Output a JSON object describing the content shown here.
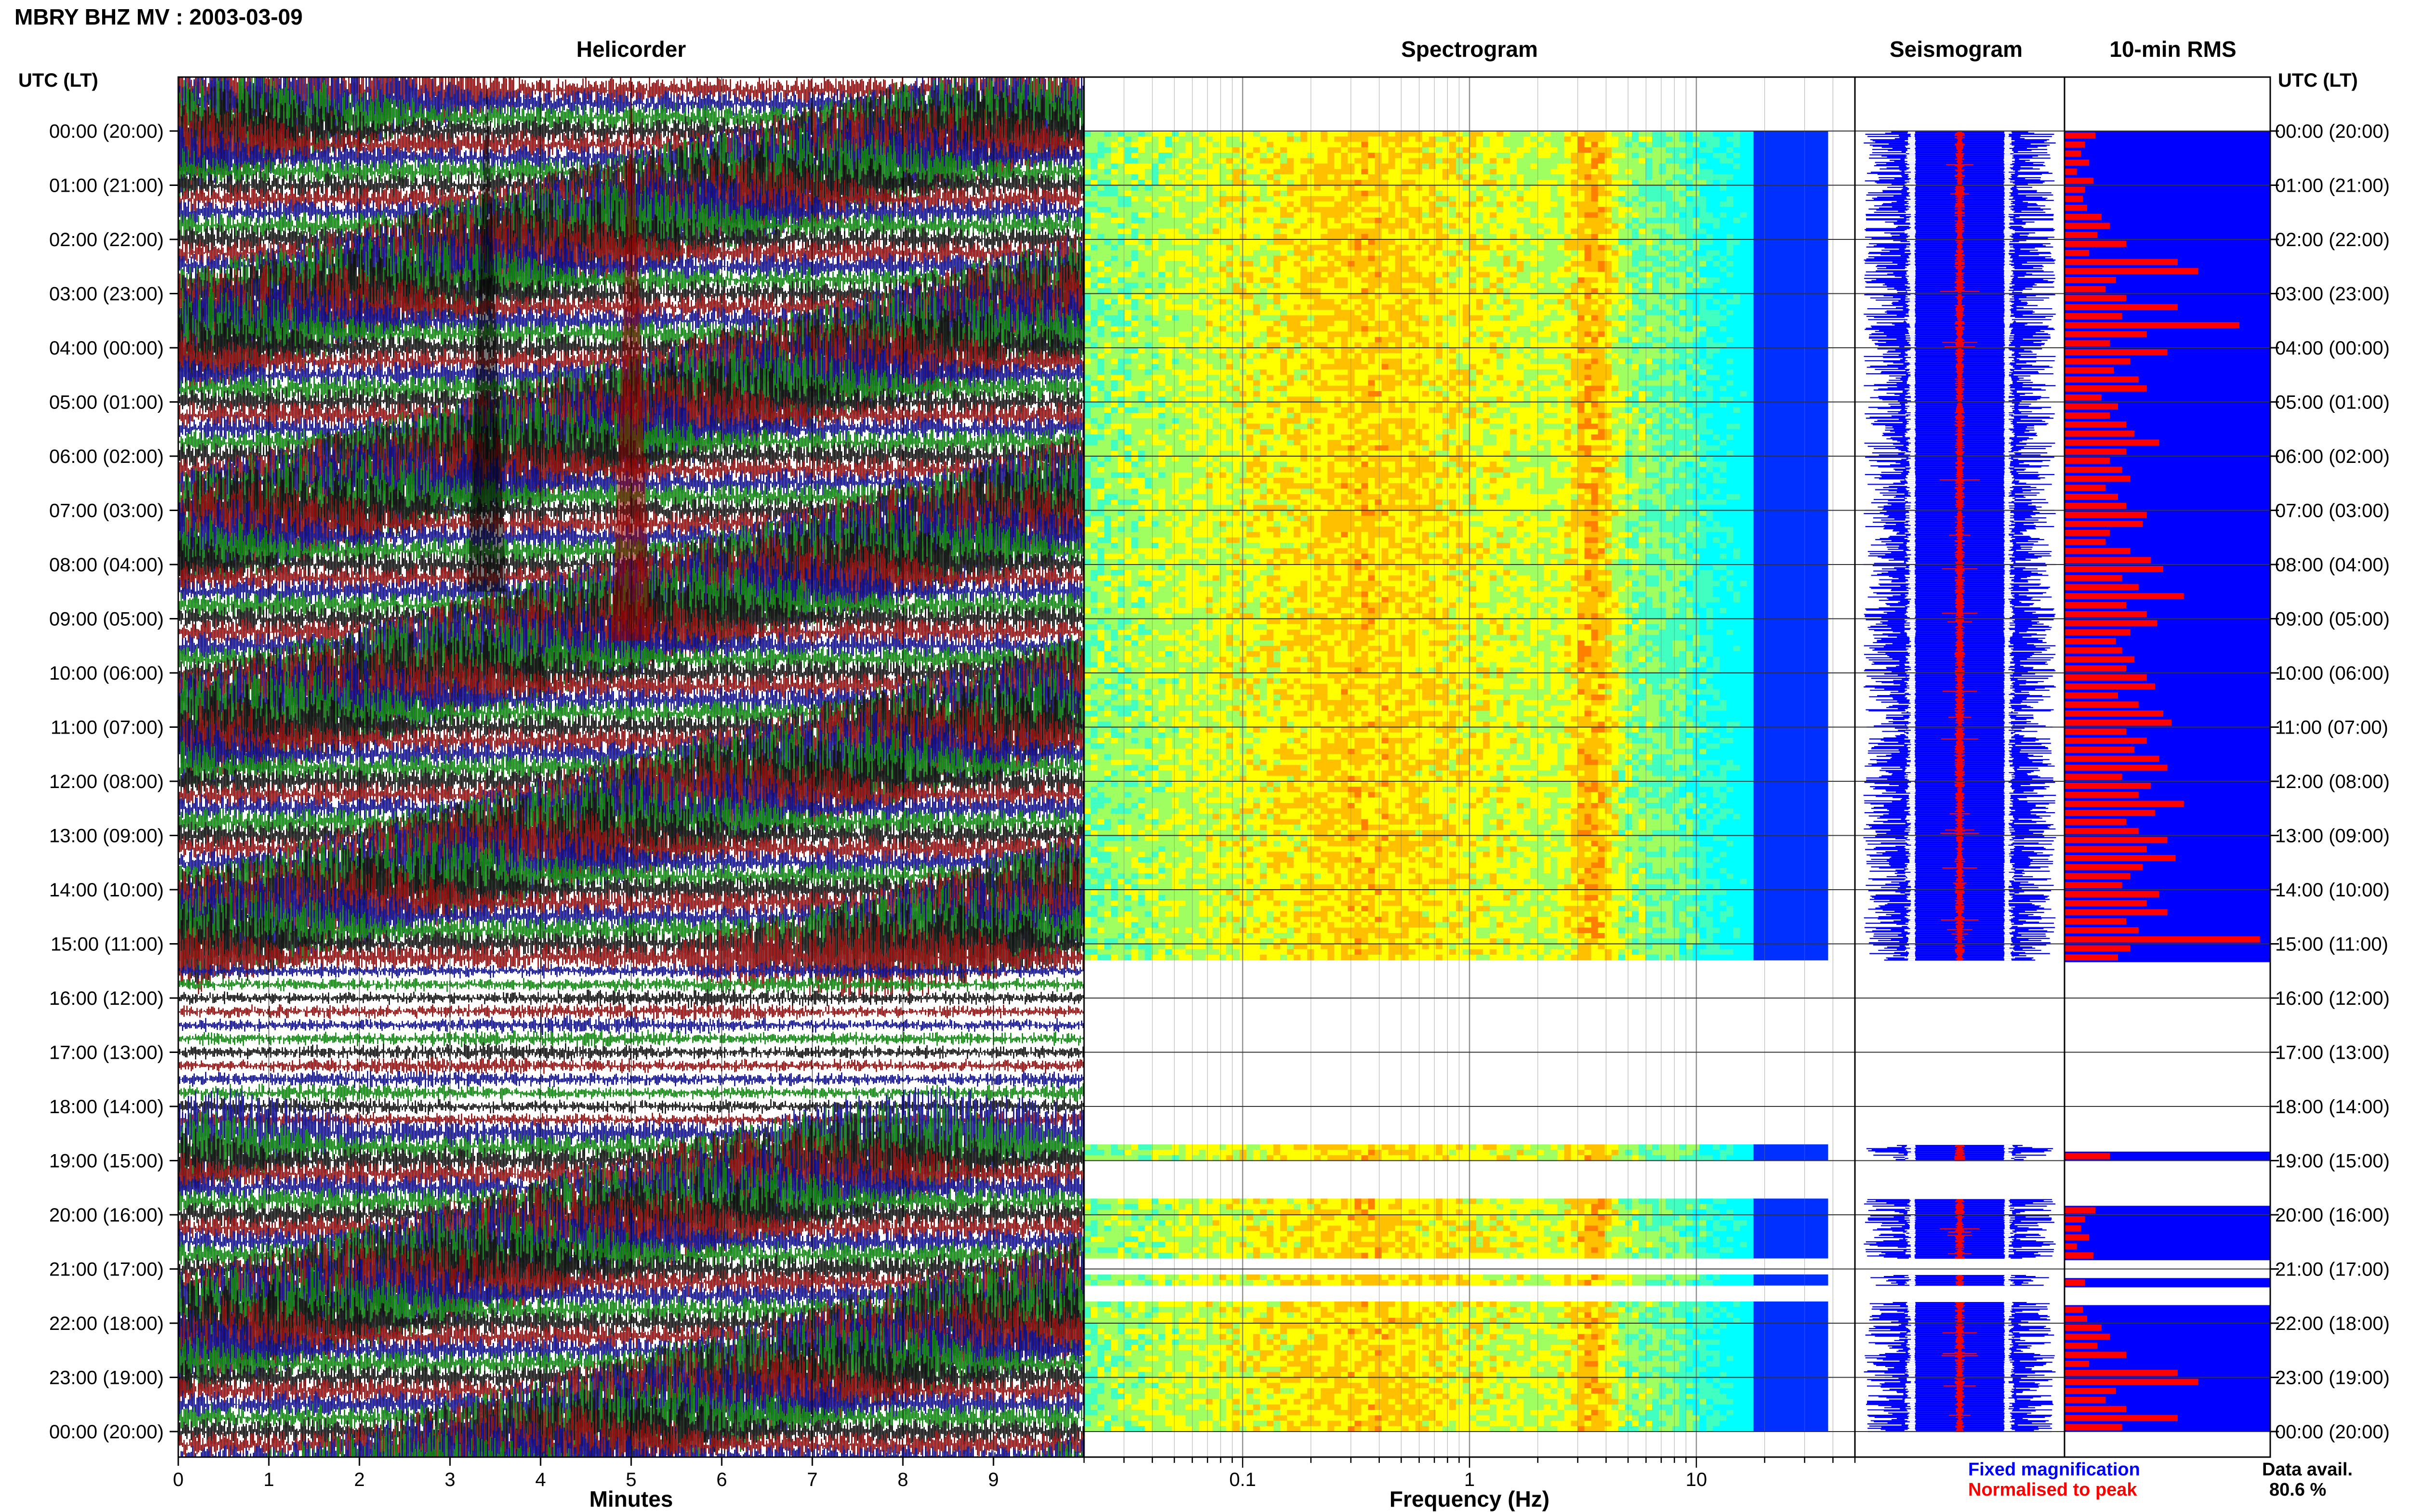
{
  "header": {
    "station_title": "MBRY BHZ MV : 2003-03-09",
    "left_axis_title": "UTC (LT)",
    "right_axis_title": "UTC (LT)"
  },
  "panels": {
    "helicorder": "Helicorder",
    "spectrogram": "Spectrogram",
    "seismogram": "Seismogram",
    "rms": "10-min RMS"
  },
  "footer": {
    "minutes_label": "Minutes",
    "frequency_label": "Frequency (Hz)",
    "legend_fixed": "Fixed magnification",
    "legend_normalised": "Normalised to peak",
    "data_avail_label": "Data avail.",
    "data_avail_value": "80.6 %"
  },
  "colors": {
    "heli_series": [
      "#000000",
      "#8b0000",
      "#00008b",
      "#008000"
    ],
    "fixed": "#0000ff",
    "normalised": "#ff0000"
  },
  "chart_data": [
    {
      "type": "line",
      "title": "Helicorder",
      "xlabel": "Minutes",
      "x_ticks": [
        "0",
        "1",
        "2",
        "3",
        "4",
        "5",
        "6",
        "7",
        "8",
        "9"
      ],
      "xlim": [
        0,
        10
      ],
      "rows_utc": [
        "00:00 (20:00)",
        "01:00 (21:00)",
        "02:00 (22:00)",
        "03:00 (23:00)",
        "04:00 (00:00)",
        "05:00 (01:00)",
        "06:00 (02:00)",
        "07:00 (03:00)",
        "08:00 (04:00)",
        "09:00 (05:00)",
        "10:00 (06:00)",
        "11:00 (07:00)",
        "12:00 (08:00)",
        "13:00 (09:00)",
        "14:00 (10:00)",
        "15:00 (11:00)",
        "16:00 (12:00)",
        "17:00 (13:00)",
        "18:00 (14:00)",
        "19:00 (15:00)",
        "20:00 (16:00)",
        "21:00 (17:00)",
        "22:00 (18:00)",
        "23:00 (19:00)",
        "00:00 (20:00)"
      ],
      "series_colors": [
        "#000000",
        "#8b0000",
        "#00008b",
        "#008000"
      ]
    },
    {
      "type": "heatmap",
      "title": "Spectrogram",
      "xlabel": "Frequency (Hz)",
      "x_scale": "log",
      "x_ticks": [
        "0.1",
        "1",
        "10"
      ],
      "xlim": [
        0.02,
        50
      ],
      "data_hours_utc": [
        [
          0,
          15.3
        ],
        [
          18.7,
          19.0
        ],
        [
          19.7,
          20.8
        ],
        [
          21.1,
          21.3
        ],
        [
          21.6,
          24.0
        ]
      ]
    },
    {
      "type": "line",
      "title": "Seismogram",
      "series": [
        {
          "name": "Fixed magnification",
          "color": "#0000ff"
        },
        {
          "name": "Normalised to peak",
          "color": "#ff0000"
        }
      ]
    },
    {
      "type": "bar",
      "title": "10-min RMS",
      "orientation": "horizontal",
      "bar_color": "#ff0000",
      "background_color": "#0000ff",
      "values": [
        0.15,
        0.1,
        0.08,
        0.12,
        0.06,
        0.14,
        0.1,
        0.09,
        0.11,
        0.18,
        0.22,
        0.16,
        0.3,
        0.12,
        0.55,
        0.65,
        0.25,
        0.2,
        0.3,
        0.55,
        0.28,
        0.85,
        0.4,
        0.22,
        0.5,
        0.32,
        0.24,
        0.36,
        0.4,
        0.18,
        0.26,
        0.22,
        0.3,
        0.34,
        0.46,
        0.3,
        0.22,
        0.28,
        0.32,
        0.2,
        0.26,
        0.3,
        0.4,
        0.38,
        0.22,
        0.2,
        0.32,
        0.42,
        0.48,
        0.28,
        0.36,
        0.58,
        0.3,
        0.4,
        0.45,
        0.32,
        0.25,
        0.28,
        0.34,
        0.3,
        0.4,
        0.44,
        0.26,
        0.36,
        0.48,
        0.52,
        0.3,
        0.4,
        0.34,
        0.46,
        0.5,
        0.28,
        0.42,
        0.36,
        0.58,
        0.44,
        0.3,
        0.36,
        0.5,
        0.4,
        0.54,
        0.38,
        0.32,
        0.28,
        0.46,
        0.4,
        0.5,
        0.3,
        0.36,
        0.95,
        0.32,
        0.26,
        0.22
      ],
      "data_hours_utc": [
        [
          0,
          15.3
        ],
        [
          18.7,
          19.0
        ],
        [
          19.7,
          20.8
        ],
        [
          21.1,
          21.3
        ],
        [
          21.6,
          24.0
        ]
      ]
    }
  ]
}
